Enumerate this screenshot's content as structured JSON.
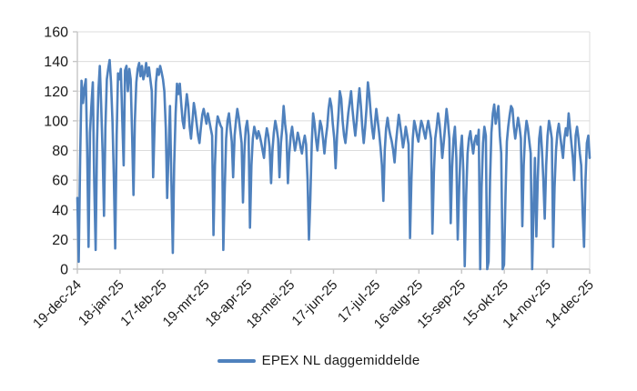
{
  "chart_data": {
    "type": "line",
    "title": "",
    "legend": {
      "label": "EPEX NL daggemiddelde",
      "position": "bottom"
    },
    "grid": "horizontal",
    "ylim": [
      0,
      160
    ],
    "y_tick_step": 20,
    "y_tick_labels": [
      "0",
      "20",
      "40",
      "60",
      "80",
      "100",
      "120",
      "140",
      "160"
    ],
    "x_tick_labels": [
      "19-dec-24",
      "18-jan-25",
      "17-feb-25",
      "19-mrt-25",
      "18-apr-25",
      "18-mei-25",
      "17-jun-25",
      "17-jul-25",
      "16-aug-25",
      "15-sep-25",
      "15-okt-25",
      "14-nov-25",
      "14-dec-25"
    ],
    "x_tick_interval_days": 30,
    "colors": {
      "series": "#4F81BD",
      "grid": "#DCDCDC",
      "axis": "#C6C6C6",
      "text": "#1A1A1A"
    },
    "series": [
      {
        "name": "EPEX NL daggemiddelde",
        "color": "#4F81BD",
        "start_date": "19-dec-24",
        "end_date": "19-dec-25",
        "frequency": "daily",
        "values": [
          48,
          5,
          75,
          127,
          112,
          122,
          128,
          80,
          15,
          92,
          110,
          126,
          60,
          13,
          85,
          120,
          137,
          110,
          78,
          36,
          95,
          128,
          135,
          141,
          126,
          100,
          62,
          14,
          90,
          132,
          128,
          135,
          100,
          70,
          134,
          137,
          120,
          135,
          128,
          90,
          50,
          100,
          126,
          135,
          139,
          130,
          137,
          128,
          132,
          139,
          130,
          136,
          128,
          120,
          62,
          95,
          126,
          135,
          131,
          137,
          133,
          128,
          120,
          95,
          48,
          80,
          110,
          60,
          11,
          70,
          105,
          125,
          118,
          125,
          112,
          100,
          95,
          108,
          118,
          110,
          96,
          88,
          100,
          112,
          106,
          98,
          90,
          85,
          95,
          104,
          108,
          103,
          98,
          105,
          100,
          95,
          90,
          23,
          70,
          95,
          103,
          100,
          97,
          95,
          13,
          55,
          88,
          100,
          105,
          96,
          86,
          62,
          90,
          100,
          108,
          102,
          94,
          85,
          45,
          80,
          95,
          100,
          90,
          28,
          70,
          88,
          96,
          92,
          88,
          93,
          90,
          85,
          80,
          75,
          88,
          95,
          90,
          82,
          58,
          80,
          92,
          100,
          95,
          88,
          62,
          85,
          95,
          110,
          98,
          90,
          58,
          78,
          90,
          96,
          88,
          80,
          85,
          92,
          88,
          82,
          78,
          85,
          90,
          84,
          60,
          20,
          47,
          85,
          105,
          98,
          88,
          80,
          90,
          100,
          96,
          88,
          78,
          88,
          96,
          108,
          115,
          110,
          98,
          88,
          68,
          90,
          104,
          120,
          115,
          100,
          90,
          85,
          95,
          105,
          112,
          120,
          108,
          98,
          90,
          100,
          112,
          122,
          110,
          96,
          85,
          95,
          108,
          126,
          118,
          105,
          95,
          88,
          98,
          108,
          100,
          92,
          82,
          70,
          46,
          80,
          95,
          102,
          95,
          90,
          86,
          80,
          72,
          85,
          95,
          104,
          97,
          90,
          82,
          88,
          96,
          90,
          84,
          21,
          60,
          88,
          100,
          96,
          90,
          86,
          94,
          100,
          97,
          92,
          88,
          95,
          100,
          94,
          88,
          24,
          65,
          88,
          96,
          105,
          98,
          88,
          75,
          85,
          96,
          108,
          100,
          88,
          31,
          68,
          88,
          96,
          75,
          20,
          55,
          80,
          90,
          66,
          2,
          50,
          78,
          88,
          93,
          85,
          78,
          86,
          90,
          84,
          94,
          0,
          55,
          85,
          96,
          90,
          0,
          5,
          60,
          92,
          105,
          111,
          98,
          104,
          110,
          90,
          78,
          0,
          3,
          50,
          86,
          96,
          104,
          110,
          108,
          96,
          88,
          95,
          102,
          96,
          88,
          29,
          70,
          90,
          100,
          95,
          86,
          78,
          0,
          40,
          75,
          22,
          60,
          88,
          96,
          80,
          60,
          34,
          70,
          90,
          100,
          95,
          88,
          15,
          55,
          80,
          92,
          98,
          90,
          82,
          75,
          88,
          95,
          90,
          105,
          95,
          85,
          75,
          60,
          90,
          96,
          88,
          78,
          70,
          38,
          15,
          60,
          85,
          90,
          75
        ]
      }
    ]
  }
}
